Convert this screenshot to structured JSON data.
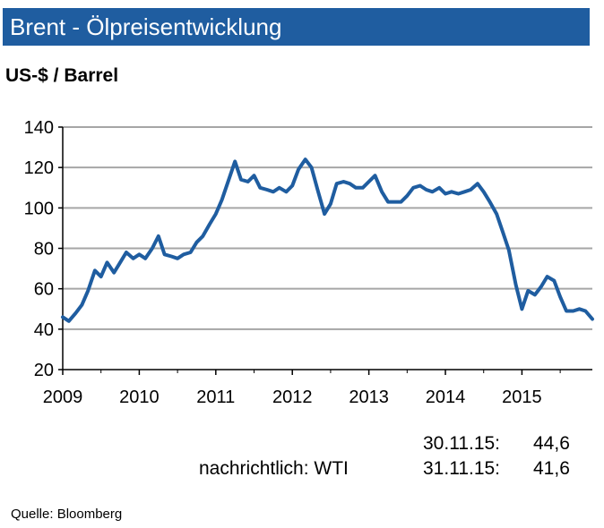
{
  "header": {
    "title": "Brent - Ölpreisentwicklung"
  },
  "unit": "US-$ / Barrel",
  "chart_data": {
    "type": "line",
    "title": "Brent - Ölpreisentwicklung",
    "ylabel": "US-$ / Barrel",
    "xlim": [
      2009.0,
      2015.92
    ],
    "ylim": [
      20,
      140
    ],
    "yticks": [
      20,
      40,
      60,
      80,
      100,
      120,
      140
    ],
    "xticks": [
      "2009",
      "2010",
      "2011",
      "2012",
      "2013",
      "2014",
      "2015"
    ],
    "grid": true,
    "color": "#1f5da0",
    "series": [
      {
        "x": [
          2009.0,
          2009.08,
          2009.17,
          2009.25,
          2009.33,
          2009.42,
          2009.5,
          2009.58,
          2009.67,
          2009.75,
          2009.83,
          2009.92,
          2010.0,
          2010.08,
          2010.17,
          2010.25,
          2010.33,
          2010.42,
          2010.5,
          2010.58,
          2010.67,
          2010.75,
          2010.83,
          2010.92,
          2011.0,
          2011.08,
          2011.17,
          2011.25,
          2011.33,
          2011.42,
          2011.5,
          2011.58,
          2011.67,
          2011.75,
          2011.83,
          2011.92,
          2012.0,
          2012.08,
          2012.17,
          2012.25,
          2012.33,
          2012.42,
          2012.5,
          2012.58,
          2012.67,
          2012.75,
          2012.83,
          2012.92,
          2013.0,
          2013.08,
          2013.17,
          2013.25,
          2013.33,
          2013.42,
          2013.5,
          2013.58,
          2013.67,
          2013.75,
          2013.83,
          2013.92,
          2014.0,
          2014.08,
          2014.17,
          2014.25,
          2014.33,
          2014.42,
          2014.5,
          2014.58,
          2014.67,
          2014.75,
          2014.83,
          2014.92,
          2015.0,
          2015.08,
          2015.17,
          2015.25,
          2015.33,
          2015.42,
          2015.5,
          2015.58,
          2015.67,
          2015.75,
          2015.83,
          2015.92
        ],
        "y": [
          46,
          44,
          48,
          52,
          59,
          69,
          66,
          73,
          68,
          73,
          78,
          75,
          77,
          75,
          80,
          86,
          77,
          76,
          75,
          77,
          78,
          83,
          86,
          92,
          97,
          104,
          114,
          123,
          114,
          113,
          116,
          110,
          109,
          108,
          110,
          108,
          111,
          119,
          124,
          120,
          109,
          97,
          102,
          112,
          113,
          112,
          110,
          110,
          113,
          116,
          108,
          103,
          103,
          103,
          106,
          110,
          111,
          109,
          108,
          110,
          107,
          108,
          107,
          108,
          109,
          112,
          108,
          103,
          97,
          88,
          79,
          62,
          50,
          59,
          57,
          61,
          66,
          64,
          56,
          49,
          49,
          50,
          49,
          45
        ]
      }
    ]
  },
  "notes": {
    "row1": {
      "label": "",
      "date": "30.11.15:",
      "value": "44,6"
    },
    "row2": {
      "label": "nachrichtlich: WTI",
      "date": "31.11.15:",
      "value": "41,6"
    }
  },
  "source": "Quelle:  Bloomberg"
}
